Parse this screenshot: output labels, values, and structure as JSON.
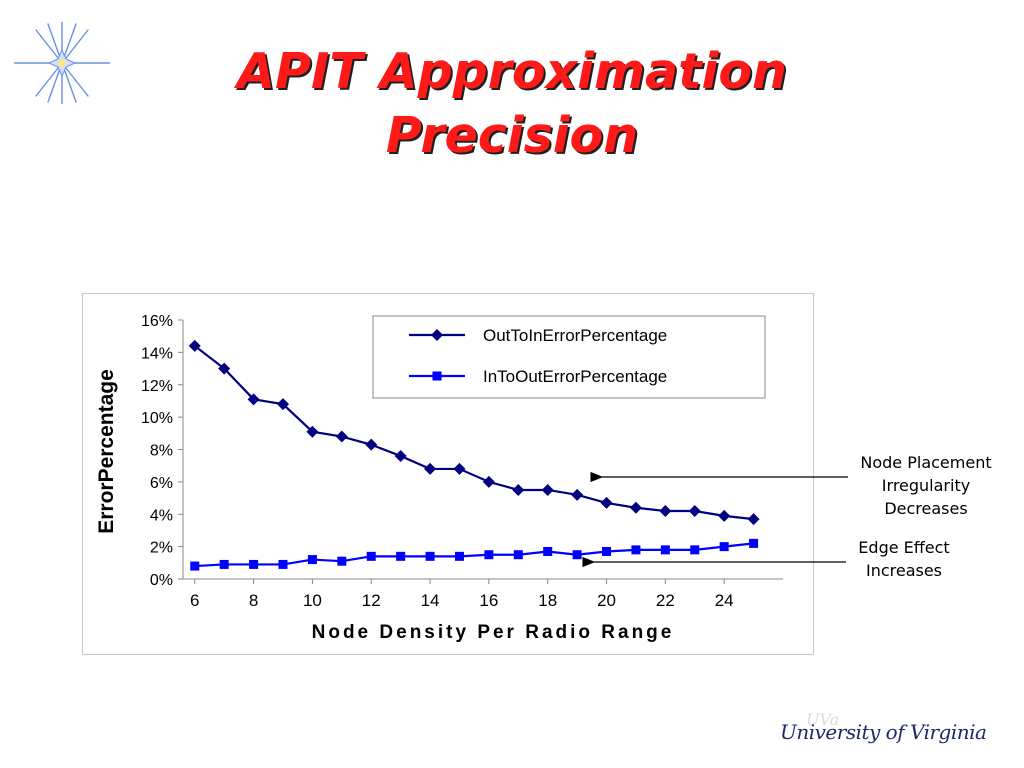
{
  "slide": {
    "title_line1": "APIT Approximation",
    "title_line2": "Precision",
    "logo_text": "University of Virginia"
  },
  "annotations": {
    "node_placement": [
      "Node Placement",
      "Irregularity",
      "Decreases"
    ],
    "edge_effect": [
      "Edge Effect",
      "Increases"
    ]
  },
  "colors": {
    "title": "#ff1a1a",
    "series_out_to_in": "#000080",
    "series_in_to_out": "#0000ff",
    "logo": "#1d2a66"
  },
  "icons": {
    "decoration": "star-icon"
  },
  "chart_data": {
    "type": "line",
    "title": "",
    "xlabel": "Node Density Per Radio Range",
    "ylabel": "ErrorPercentage",
    "x": [
      6,
      7,
      8,
      9,
      10,
      11,
      12,
      13,
      14,
      15,
      16,
      17,
      18,
      19,
      20,
      21,
      22,
      23,
      24,
      25
    ],
    "x_ticks": [
      "6",
      "8",
      "10",
      "12",
      "14",
      "16",
      "18",
      "20",
      "22",
      "24"
    ],
    "y_ticks": [
      "0%",
      "2%",
      "4%",
      "6%",
      "8%",
      "10%",
      "12%",
      "14%",
      "16%"
    ],
    "ylim": [
      0,
      16
    ],
    "y_unit": "%",
    "grid": false,
    "legend_position": "top-right",
    "series": [
      {
        "name": "OutToInErrorPercentage",
        "marker": "diamond",
        "values": [
          14.4,
          13.0,
          11.1,
          10.8,
          9.1,
          8.8,
          8.3,
          7.6,
          6.8,
          6.8,
          6.0,
          5.5,
          5.5,
          5.2,
          4.7,
          4.4,
          4.2,
          4.2,
          3.9,
          3.7
        ]
      },
      {
        "name": "InToOutErrorPercentage",
        "marker": "square",
        "values": [
          0.8,
          0.9,
          0.9,
          0.9,
          1.2,
          1.1,
          1.4,
          1.4,
          1.4,
          1.4,
          1.5,
          1.5,
          1.7,
          1.5,
          1.7,
          1.8,
          1.8,
          1.8,
          2.0,
          2.2
        ]
      }
    ]
  }
}
